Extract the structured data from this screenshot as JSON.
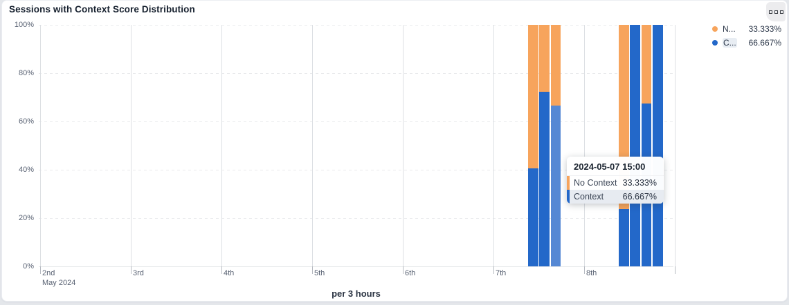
{
  "card": {
    "title": "Sessions with Context Score Distribution"
  },
  "menu_button": {
    "icon": "boxes-menu-icon"
  },
  "legend": {
    "items": [
      {
        "label": "N...",
        "value": "33.333%",
        "color": "#F7A45C",
        "highlighted": false
      },
      {
        "label": "C...",
        "value": "66.667%",
        "color": "#2368C9",
        "highlighted": true
      }
    ]
  },
  "tooltip": {
    "title": "2024-05-07 15:00",
    "rows": [
      {
        "label": "No Context",
        "value": "33.333%",
        "color": "#F7A45C",
        "highlighted": false
      },
      {
        "label": "Context",
        "value": "66.667%",
        "color": "#2368C9",
        "highlighted": true
      }
    ]
  },
  "chart_data": {
    "type": "bar",
    "stacked": true,
    "title": "Sessions with Context Score Distribution",
    "x_axis": {
      "tick_labels": [
        "2nd",
        "3rd",
        "4th",
        "5th",
        "6th",
        "7th",
        "8th"
      ],
      "sub_label": "May 2024",
      "caption": "per 3 hours",
      "end_tick": true
    },
    "y_axis": {
      "tick_labels": [
        "0%",
        "20%",
        "40%",
        "60%",
        "80%",
        "100%"
      ],
      "range": [
        0,
        100
      ],
      "unit": "%"
    },
    "series": [
      {
        "name": "Context",
        "color": "#2368C9",
        "hover_color": "#5588D4"
      },
      {
        "name": "No Context",
        "color": "#F7A45C"
      }
    ],
    "bars": [
      {
        "time": "2024-05-07 09:00",
        "context": 40.6,
        "no_context": 59.4
      },
      {
        "time": "2024-05-07 12:00",
        "context": 72.3,
        "no_context": 27.7
      },
      {
        "time": "2024-05-07 15:00",
        "context": 66.667,
        "no_context": 33.333,
        "hovered": true
      },
      {
        "time": "2024-05-08 09:00",
        "context": 23.7,
        "no_context": 76.3
      },
      {
        "time": "2024-05-08 12:00",
        "context": 100,
        "no_context": 0
      },
      {
        "time": "2024-05-08 15:00",
        "context": 67.4,
        "no_context": 32.6
      },
      {
        "time": "2024-05-08 18:00",
        "context": 100,
        "no_context": 0
      }
    ]
  }
}
